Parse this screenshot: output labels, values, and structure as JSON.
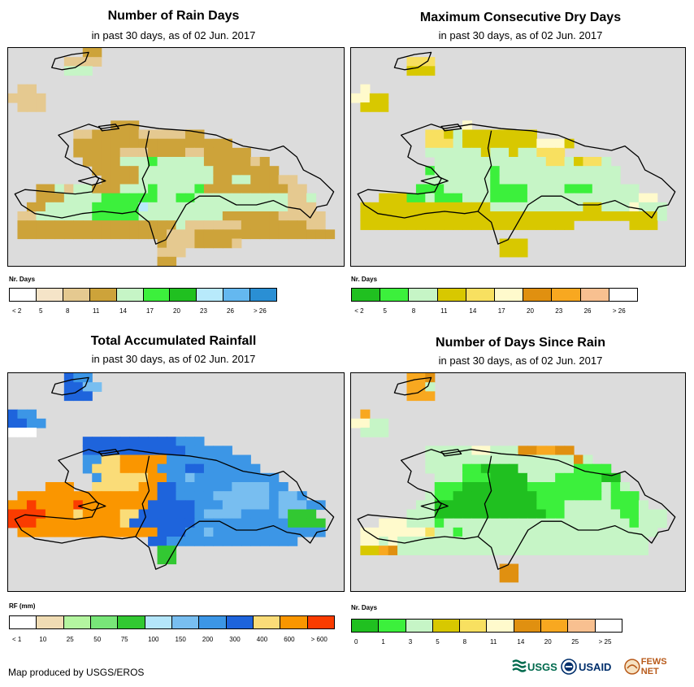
{
  "panels": [
    {
      "title": "Number of Rain Days",
      "subtitle": "in past 30 days, as of 02 Jun. 2017",
      "legend_title": "Nr. Days",
      "legend_colors": [
        "#ffffff",
        "#f5e4c8",
        "#e5c990",
        "#cda33a",
        "#c6f5c6",
        "#3cf03c",
        "#20c020",
        "#b8eafb",
        "#64b8f0",
        "#2a8fd4"
      ],
      "legend_labels": [
        "< 2",
        "5",
        "8",
        "11",
        "14",
        "17",
        "20",
        "23",
        "26",
        "> 26"
      ],
      "palette": [
        "#dcdcdc",
        "#f5e4c8",
        "#e5c990",
        "#cda33a",
        "#c6f5c6",
        "#3cf03c",
        "#20c020",
        "#b8eafb",
        "#64b8f0"
      ],
      "grid": [
        "000000003300000000000000000000000000",
        "000000222200000000000000000000000000",
        "000000444000000000000000000000000000",
        "000000000000000000000000000000000000",
        "022000000000000000000000000000000000",
        "222200000000000000000000000000000000",
        "022200000000000000000000000000000000",
        "000000000000000000000000000000000000",
        "000000000003330000000000000000000000",
        "000000022333332222233000000000000000",
        "000000033333333333333333000000000000",
        "000000033333222333322333330000000000",
        "000000003333444544444333332300000000",
        "000000000333334444444433333330000000",
        "000000000033334444444433443332200000",
        "000334244333444544445333333333220000",
        "000333444455555544554444444444224000",
        "003344444555557444444444444444222000",
        "022444444555554444444443333332222200",
        "033333333333333333422222233333332200",
        "033333333333333332223333333333333330",
        "000000000000000032223333200000000000",
        "000000000000000022200000000000000000",
        "000000000000000033000000000000000000"
      ]
    },
    {
      "title": "Maximum Consecutive Dry Days",
      "subtitle": "in past 30 days, as of 02 Jun. 2017",
      "legend_title": "Nr. Days",
      "legend_colors": [
        "#20c020",
        "#3cf03c",
        "#c6f5c6",
        "#d8c800",
        "#f8e060",
        "#fffacc",
        "#e09010",
        "#f8a820",
        "#f8c090",
        "#ffffff"
      ],
      "legend_labels": [
        "< 2",
        "5",
        "8",
        "11",
        "14",
        "17",
        "20",
        "23",
        "26",
        "> 26"
      ],
      "palette": [
        "#dcdcdc",
        "#20c020",
        "#3cf03c",
        "#c6f5c6",
        "#d8c800",
        "#f8e060",
        "#fffacc",
        "#e09010",
        "#f8a820"
      ],
      "grid": [
        "000000000000000000000000000000000000",
        "000000555000000000000000000000000000",
        "000000444000000000000000000000000000",
        "000000000000000000000000000000000000",
        "060000000000000000000000000000000000",
        "664400000000000000000000000000000000",
        "044400000000000000000000000000000000",
        "000000000000000000000000000000000000",
        "000000000000600000000000000000000000",
        "000000005543444444440000000000000000",
        "000000005553444444446664000000000000",
        "000000003333334334335550000000000000",
        "000000000333333333333553455300000000",
        "000000002333333233333333333330000000",
        "000000003333333233333333333330000000",
        "000000022233333222233332223333300000",
        "000444223222333222233333333333366000",
        "044444444444444333333333344333633300",
        "044444444444444444444444444444444300",
        "044444444444444444444444000000444000",
        "000000000000000000000000000000000000",
        "000000000000000044400000000000000000",
        "000000000000000044400000000000000000",
        "000000000000000000000000000000000000"
      ]
    },
    {
      "title": "Total Accumulated Rainfall",
      "subtitle": "in past 30 days, as of 02 Jun. 2017",
      "legend_title": "RF (mm)",
      "legend_colors": [
        "#ffffff",
        "#f0dcb4",
        "#b4f5a0",
        "#78e678",
        "#32c832",
        "#b4e6fa",
        "#78bef0",
        "#3c96e6",
        "#1e64dc",
        "#fadc78",
        "#fa9600",
        "#fa3c00"
      ],
      "legend_labels": [
        "< 1",
        "10",
        "25",
        "50",
        "75",
        "100",
        "150",
        "200",
        "300",
        "400",
        "600",
        "> 600"
      ],
      "palette": [
        "#dcdcdc",
        "#ffffff",
        "#1e64dc",
        "#3c96e6",
        "#78bef0",
        "#b4e6fa",
        "#fadc78",
        "#fa9600",
        "#fa3c00",
        "#32c832",
        "#78e678"
      ],
      "grid": [
        "000000233000000000000000000000000000",
        "000000224400000000000000000000000000",
        "000000222000000000000000000000000000",
        "000000000000000000000000000000000000",
        "233000000000000000000000000000000000",
        "223300000000000000000000000000000000",
        "111000000000000000000000000000000000",
        "000000002222222222333000000000000000",
        "000000002222222222233333000000000000",
        "000000003366777773333333330000000000",
        "000000003666777733322333333000000000",
        "000000000366666773343333333330000000",
        "000077700666667722333333444433000000",
        "077777777777777722333344444434430000",
        "778777787777777222223334444434443300",
        "888877767777662222223444433334999000",
        "888777777777622222223333333333999900",
        "077777777777777722233433333333333300",
        "000000000000000223333333333333300000",
        "000000000000000099000000000000000000",
        "000000000000000099000000000000000000",
        "000000000000000000000000000000000000",
        "000000000000000000000000000000000000",
        "000000000000000000000000000000000000"
      ]
    },
    {
      "title": "Number of Days Since Rain",
      "subtitle": "in past 30 days, as of 02 Jun. 2017",
      "legend_title": "Nr. Days",
      "legend_colors": [
        "#20c020",
        "#3cf03c",
        "#c6f5c6",
        "#d8c800",
        "#f8e060",
        "#fffacc",
        "#e09010",
        "#f8a820",
        "#f8c090",
        "#ffffff"
      ],
      "legend_labels": [
        "0",
        "1",
        "3",
        "5",
        "8",
        "11",
        "14",
        "20",
        "25",
        "> 25"
      ],
      "palette": [
        "#dcdcdc",
        "#20c020",
        "#3cf03c",
        "#c6f5c6",
        "#d8c800",
        "#f8e060",
        "#fffacc",
        "#e09010",
        "#f8a820"
      ],
      "grid": [
        "000000887000000000000000000000000000",
        "000000883000000000000000000000000000",
        "000000888000000000000000000000000000",
        "000000000000000000000000000000000000",
        "080000000000000000000000000000000000",
        "663300000000000000000000000000000000",
        "033300000000000000000000000000000000",
        "000000000000000000000000000000000000",
        "000000003333366333778877000000000000",
        "000000003333333333333333730000000000",
        "000000003333221111333333222200000000",
        "000000000333222111133322222110000000",
        "000000000222111111122222222323000000",
        "000000003221111111112222222322200000",
        "000000033111111111112223333322230000",
        "000000333111111111111223333332233300",
        "000666333233333333333333333333233300",
        "066666665332333333333333333333333000",
        "066363333333333333333333333333330000",
        "044873333333333333333333333333330000",
        "000000000000000000000000000000000000",
        "000000000000000077000000000000000000",
        "000000000000000077000000000000000000",
        "000000000000000000000000000000000000"
      ]
    }
  ],
  "footer": {
    "credit": "Map produced by USGS/EROS",
    "logo_usgs": "USGS",
    "logo_usaid": "USAID",
    "logo_fews": "FEWS NET"
  }
}
